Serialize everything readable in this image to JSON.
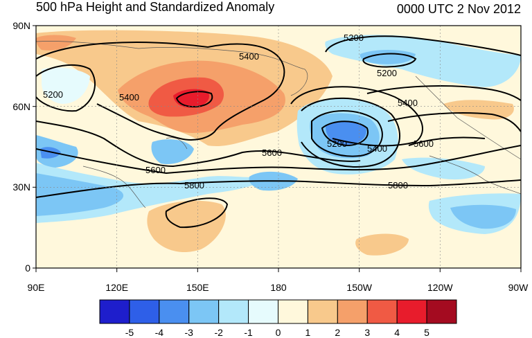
{
  "title": "500 hPa Height and Standardized Anomaly",
  "time_label": "0000 UTC 2 Nov 2012",
  "lat_ticks": [
    "90N",
    "60N",
    "30N",
    "0"
  ],
  "lon_ticks": [
    "90E",
    "120E",
    "150E",
    "180",
    "150W",
    "120W",
    "90W"
  ],
  "contour_labels": [
    "5200",
    "5400",
    "5400",
    "5200",
    "5200",
    "5400",
    "5600",
    "5800",
    "5200",
    "5400",
    "5600",
    "5600",
    "5800"
  ],
  "colorbar": {
    "labels": [
      "-5",
      "-4",
      "-3",
      "-2",
      "-1",
      "0",
      "1",
      "2",
      "3",
      "4",
      "5"
    ],
    "colors": [
      "#1e1ecc",
      "#2e5fe8",
      "#4a8ff0",
      "#7cc6f5",
      "#b3e8fa",
      "#e6fbfd",
      "#fff8dc",
      "#f8c98c",
      "#f5a06a",
      "#f05a44",
      "#e81c2c",
      "#a40b20"
    ]
  }
}
